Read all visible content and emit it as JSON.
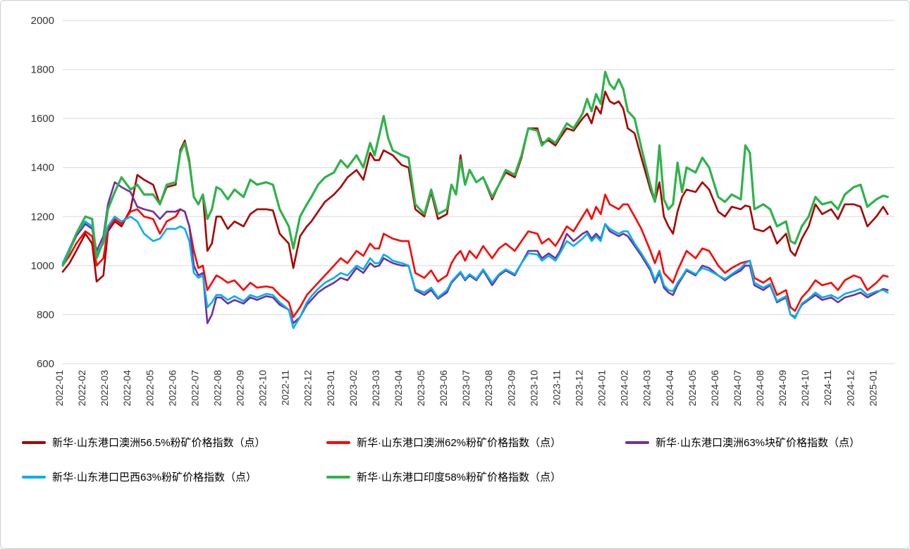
{
  "colors": {
    "grid": "#d9d9d9",
    "axis_text": "#333333",
    "background": "#ffffff"
  },
  "chart_data": {
    "type": "line",
    "title": "",
    "xlabel": "",
    "ylabel": "",
    "ylim": [
      600,
      2000
    ],
    "ytick_step": 200,
    "grid": "horizontal",
    "legend_position": "bottom",
    "x_labels": [
      "2022-01",
      "2022-02",
      "2022-03",
      "2022-04",
      "2022-05",
      "2022-06",
      "2022-07",
      "2022-08",
      "2022-09",
      "2022-10",
      "2022-11",
      "2022-12",
      "2023-01",
      "2023-02",
      "2023-03",
      "2023-04",
      "2023-05",
      "2023-06",
      "2023-07",
      "2023-08",
      "2023-09",
      "2023-10",
      "2023-11",
      "2023-12",
      "2024-01",
      "2024-02",
      "2024-03",
      "2024-04",
      "2024-05",
      "2024-06",
      "2024-07",
      "2024-08",
      "2024-09",
      "2024-10",
      "2024-11",
      "2024-12",
      "2025-01"
    ],
    "x": [
      0,
      0.3,
      0.6,
      1,
      1.3,
      1.5,
      1.8,
      2,
      2.3,
      2.6,
      3,
      3.3,
      3.6,
      4,
      4.3,
      4.6,
      5,
      5.2,
      5.4,
      5.6,
      5.8,
      6,
      6.2,
      6.4,
      6.6,
      6.8,
      7,
      7.3,
      7.6,
      8,
      8.3,
      8.6,
      9,
      9.3,
      9.6,
      10,
      10.2,
      10.5,
      10.8,
      11,
      11.3,
      11.6,
      12,
      12.3,
      12.6,
      13,
      13.3,
      13.6,
      13.8,
      14,
      14.2,
      14.4,
      14.6,
      15,
      15.3,
      15.6,
      16,
      16.3,
      16.6,
      17,
      17.2,
      17.4,
      17.6,
      17.8,
      18,
      18.3,
      18.6,
      19,
      19.3,
      19.6,
      20,
      20.3,
      20.6,
      21,
      21.2,
      21.5,
      21.8,
      22,
      22.3,
      22.6,
      23,
      23.2,
      23.4,
      23.6,
      23.8,
      24,
      24.2,
      24.4,
      24.6,
      24.8,
      25,
      25.3,
      25.6,
      26,
      26.2,
      26.4,
      26.6,
      26.8,
      27,
      27.2,
      27.4,
      27.6,
      28,
      28.3,
      28.6,
      29,
      29.3,
      29.6,
      30,
      30.2,
      30.4,
      30.6,
      31,
      31.3,
      31.6,
      32,
      32.2,
      32.4,
      32.7,
      33,
      33.3,
      33.6,
      34,
      34.3,
      34.6,
      35,
      35.3,
      35.6,
      36,
      36.3,
      36.5
    ],
    "series": [
      {
        "name": "新华·山东港口澳洲56.5%粉矿价格指数（点）",
        "color": "#a80000",
        "width": 2.6,
        "values": [
          975,
          1010,
          1060,
          1130,
          1090,
          935,
          960,
          1140,
          1180,
          1160,
          1230,
          1370,
          1350,
          1330,
          1250,
          1320,
          1330,
          1470,
          1510,
          1430,
          1280,
          1250,
          1290,
          1060,
          1090,
          1200,
          1200,
          1150,
          1180,
          1160,
          1210,
          1230,
          1230,
          1225,
          1130,
          1090,
          990,
          1120,
          1160,
          1180,
          1220,
          1260,
          1290,
          1320,
          1360,
          1390,
          1350,
          1460,
          1430,
          1430,
          1470,
          1460,
          1450,
          1410,
          1400,
          1230,
          1200,
          1300,
          1190,
          1210,
          1330,
          1290,
          1450,
          1330,
          1390,
          1340,
          1360,
          1270,
          1330,
          1380,
          1360,
          1440,
          1560,
          1560,
          1500,
          1510,
          1490,
          1520,
          1560,
          1550,
          1600,
          1620,
          1580,
          1650,
          1620,
          1710,
          1670,
          1660,
          1670,
          1640,
          1560,
          1540,
          1440,
          1310,
          1260,
          1340,
          1200,
          1160,
          1130,
          1220,
          1280,
          1310,
          1300,
          1340,
          1310,
          1220,
          1200,
          1240,
          1230,
          1245,
          1240,
          1150,
          1140,
          1160,
          1090,
          1130,
          1060,
          1040,
          1110,
          1160,
          1250,
          1210,
          1230,
          1190,
          1250,
          1250,
          1240,
          1160,
          1200,
          1240,
          1210
        ]
      },
      {
        "name": "新华·山东港口澳洲62%粉矿价格指数（点）",
        "color": "#ff0000",
        "width": 2.6,
        "values": [
          1000,
          1040,
          1090,
          1140,
          1120,
          1000,
          1030,
          1150,
          1190,
          1170,
          1220,
          1230,
          1200,
          1190,
          1130,
          1180,
          1200,
          1230,
          1220,
          1160,
          1060,
          990,
          1000,
          900,
          930,
          960,
          950,
          930,
          940,
          900,
          930,
          910,
          915,
          910,
          880,
          850,
          790,
          830,
          880,
          900,
          930,
          960,
          1000,
          1030,
          1010,
          1060,
          1040,
          1090,
          1070,
          1070,
          1130,
          1120,
          1110,
          1100,
          1100,
          970,
          950,
          980,
          935,
          960,
          1010,
          1040,
          1060,
          1020,
          1060,
          1030,
          1080,
          1030,
          1070,
          1090,
          1060,
          1100,
          1140,
          1130,
          1090,
          1110,
          1080,
          1110,
          1160,
          1140,
          1200,
          1230,
          1190,
          1240,
          1210,
          1290,
          1250,
          1240,
          1230,
          1250,
          1250,
          1200,
          1150,
          1060,
          1010,
          1060,
          970,
          950,
          930,
          980,
          1020,
          1060,
          1030,
          1070,
          1060,
          1000,
          970,
          990,
          1010,
          1015,
          1020,
          950,
          930,
          950,
          880,
          900,
          830,
          815,
          870,
          900,
          940,
          920,
          930,
          900,
          940,
          960,
          950,
          900,
          930,
          960,
          955
        ]
      },
      {
        "name": "新华·山东港口澳洲63%块矿价格指数（点）",
        "color": "#7030a0",
        "width": 2.6,
        "values": [
          1000,
          1060,
          1120,
          1170,
          1150,
          1060,
          1120,
          1250,
          1340,
          1320,
          1300,
          1240,
          1230,
          1220,
          1190,
          1220,
          1220,
          1230,
          1220,
          1160,
          1000,
          960,
          970,
          765,
          800,
          870,
          870,
          845,
          860,
          845,
          870,
          860,
          875,
          870,
          840,
          820,
          765,
          790,
          840,
          860,
          890,
          910,
          930,
          950,
          940,
          990,
          970,
          1010,
          995,
          1000,
          1030,
          1020,
          1010,
          1000,
          1000,
          900,
          880,
          900,
          865,
          890,
          930,
          950,
          970,
          940,
          960,
          940,
          980,
          920,
          960,
          980,
          960,
          1010,
          1060,
          1060,
          1030,
          1050,
          1030,
          1060,
          1130,
          1100,
          1130,
          1140,
          1110,
          1130,
          1110,
          1170,
          1140,
          1130,
          1120,
          1130,
          1120,
          1080,
          1040,
          980,
          930,
          970,
          910,
          890,
          880,
          920,
          950,
          980,
          960,
          1000,
          990,
          960,
          940,
          960,
          980,
          1000,
          1000,
          920,
          900,
          920,
          850,
          870,
          800,
          790,
          840,
          860,
          880,
          860,
          870,
          850,
          870,
          880,
          890,
          870,
          890,
          905,
          900
        ]
      },
      {
        "name": "新华·山东港口巴西63%粉矿价格指数（点）",
        "color": "#00b0f0",
        "width": 2.6,
        "values": [
          1010,
          1070,
          1130,
          1180,
          1160,
          1050,
          1090,
          1160,
          1200,
          1180,
          1200,
          1180,
          1130,
          1100,
          1110,
          1150,
          1150,
          1160,
          1150,
          1100,
          970,
          950,
          960,
          830,
          850,
          880,
          880,
          860,
          875,
          855,
          880,
          870,
          885,
          880,
          850,
          820,
          745,
          790,
          850,
          875,
          905,
          930,
          950,
          970,
          960,
          1000,
          985,
          1030,
          1010,
          1010,
          1045,
          1035,
          1020,
          1010,
          1000,
          905,
          890,
          910,
          870,
          900,
          935,
          955,
          975,
          945,
          965,
          945,
          985,
          930,
          965,
          985,
          965,
          1010,
          1050,
          1045,
          1020,
          1040,
          1020,
          1050,
          1100,
          1080,
          1110,
          1130,
          1100,
          1120,
          1100,
          1170,
          1150,
          1140,
          1130,
          1140,
          1140,
          1090,
          1050,
          990,
          940,
          980,
          920,
          900,
          895,
          930,
          955,
          985,
          965,
          990,
          980,
          960,
          945,
          965,
          990,
          1010,
          1020,
          930,
          910,
          925,
          855,
          875,
          800,
          785,
          845,
          865,
          890,
          870,
          880,
          865,
          885,
          895,
          905,
          880,
          895,
          900,
          890
        ]
      },
      {
        "name": "新华·山东港口印度58%粉矿价格指数（点）",
        "color": "#2db34a",
        "width": 3.2,
        "values": [
          1000,
          1060,
          1130,
          1200,
          1190,
          1030,
          1100,
          1230,
          1300,
          1360,
          1310,
          1330,
          1290,
          1290,
          1250,
          1330,
          1340,
          1460,
          1500,
          1420,
          1280,
          1250,
          1290,
          1190,
          1230,
          1320,
          1310,
          1270,
          1310,
          1280,
          1350,
          1330,
          1340,
          1330,
          1230,
          1160,
          1070,
          1200,
          1250,
          1280,
          1330,
          1360,
          1380,
          1430,
          1400,
          1450,
          1400,
          1500,
          1450,
          1530,
          1610,
          1520,
          1470,
          1450,
          1440,
          1250,
          1210,
          1310,
          1210,
          1230,
          1330,
          1290,
          1430,
          1330,
          1390,
          1340,
          1360,
          1280,
          1330,
          1390,
          1370,
          1450,
          1560,
          1550,
          1490,
          1520,
          1500,
          1530,
          1580,
          1560,
          1620,
          1680,
          1630,
          1700,
          1660,
          1790,
          1740,
          1720,
          1760,
          1720,
          1630,
          1600,
          1480,
          1330,
          1260,
          1490,
          1270,
          1230,
          1250,
          1420,
          1300,
          1400,
          1380,
          1440,
          1400,
          1280,
          1260,
          1290,
          1270,
          1490,
          1460,
          1230,
          1250,
          1230,
          1160,
          1180,
          1100,
          1090,
          1160,
          1200,
          1280,
          1250,
          1260,
          1230,
          1290,
          1320,
          1330,
          1240,
          1270,
          1285,
          1280
        ]
      }
    ]
  }
}
